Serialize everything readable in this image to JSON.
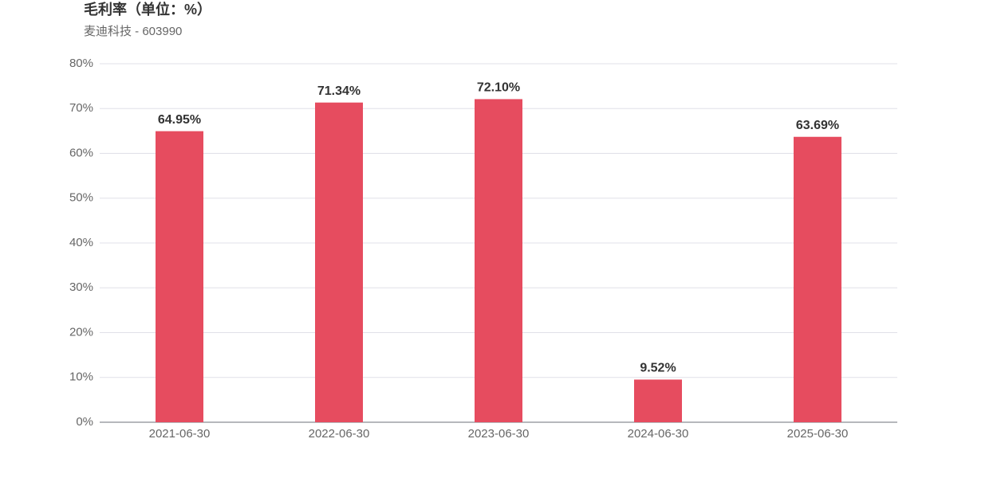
{
  "chart_data": {
    "type": "bar",
    "title": "毛利率（单位：%）",
    "subtitle": "麦迪科技 - 603990",
    "categories": [
      "2021-06-30",
      "2022-06-30",
      "2023-06-30",
      "2024-06-30",
      "2025-06-30"
    ],
    "values": [
      64.95,
      71.34,
      72.1,
      9.52,
      63.69
    ],
    "value_labels": [
      "64.95%",
      "71.34%",
      "72.10%",
      "9.52%",
      "63.69%"
    ],
    "color": "#e64c5f",
    "ylim": [
      0,
      80
    ],
    "yticks": [
      {
        "value": 0,
        "label": "0%"
      },
      {
        "value": 10,
        "label": "10%"
      },
      {
        "value": 20,
        "label": "20%"
      },
      {
        "value": 30,
        "label": "30%"
      },
      {
        "value": 40,
        "label": "40%"
      },
      {
        "value": 50,
        "label": "50%"
      },
      {
        "value": 60,
        "label": "60%"
      },
      {
        "value": 70,
        "label": "70%"
      },
      {
        "value": 80,
        "label": "80%"
      }
    ],
    "grid": true
  }
}
